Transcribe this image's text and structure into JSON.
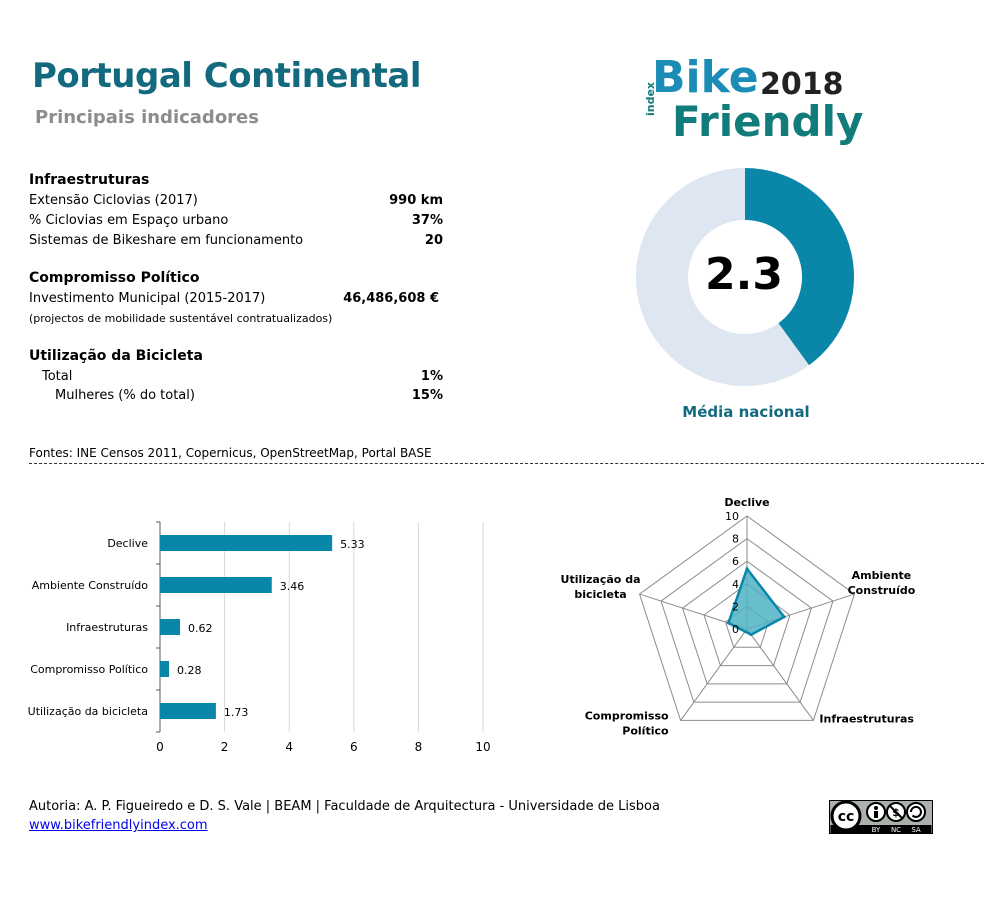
{
  "header": {
    "title": "Portugal Continental",
    "subtitle": "Principais indicadores"
  },
  "logo": {
    "bike": "Bike",
    "year": "2018",
    "index": "index",
    "friendly": "Friendly"
  },
  "indicators": {
    "infra_heading": "Infraestruturas",
    "infra_rows": [
      {
        "label": "Extensão Ciclovias (2017)",
        "value": "990 km"
      },
      {
        "label": "% Ciclovias em Espaço urbano",
        "value": "37%"
      },
      {
        "label": "Sistemas de Bikeshare em funcionamento",
        "value": "20"
      }
    ],
    "pol_heading": "Compromisso Político",
    "pol_label": "Investimento Municipal (2015-2017)",
    "pol_value": "46,486,608 €",
    "pol_note": "(projectos de mobilidade sustentável contratualizados)",
    "use_heading": "Utilização da Bicicleta",
    "use_total_label": "Total",
    "use_total_value": "1%",
    "use_women_label": "Mulheres (% do total)",
    "use_women_value": "15%"
  },
  "score": {
    "value": "2.3",
    "label": "Média nacional",
    "fraction": 0.4,
    "fill_color": "#0a86a8",
    "track_color": "#dde6f1"
  },
  "sources": "Fontes: INE Censos 2011, Copernicus, OpenStreetMap,  Portal BASE",
  "chart_data": [
    {
      "type": "bar",
      "orientation": "horizontal",
      "categories": [
        "Declive",
        "Ambiente Construído",
        "Infraestruturas",
        "Compromisso Político",
        "Utilização da bicicleta"
      ],
      "values": [
        5.33,
        3.46,
        0.62,
        0.28,
        1.73
      ],
      "value_labels": [
        "5.33",
        "3.46",
        "0.62",
        "0.28",
        "1.73"
      ],
      "xticks": [
        "0",
        "2",
        "4",
        "6",
        "8",
        "10"
      ],
      "xlim": [
        0,
        10
      ],
      "grid": true,
      "color": "#0a86a8"
    },
    {
      "type": "radar",
      "axes": [
        "Declive",
        "Ambiente\nConstruído",
        "Infraestruturas",
        "Compromisso\nPolítico",
        "Utilização da\nbicicleta"
      ],
      "values": [
        5.33,
        3.46,
        0.62,
        0.28,
        1.73
      ],
      "rticks": [
        "0",
        "2",
        "4",
        "6",
        "8",
        "10"
      ],
      "rlim": [
        0,
        10
      ],
      "color": "#0a86a8",
      "fill": "#4fb3c6"
    }
  ],
  "footer": {
    "credits": "Autoria: A. P. Figueiredo e D. S. Vale | BEAM | Faculdade de Arquitectura - Universidade de Lisboa",
    "link": "www.bikefriendlyindex.com",
    "cc": "cc",
    "cc_by": "BY",
    "cc_nc": "NC",
    "cc_sa": "SA"
  }
}
